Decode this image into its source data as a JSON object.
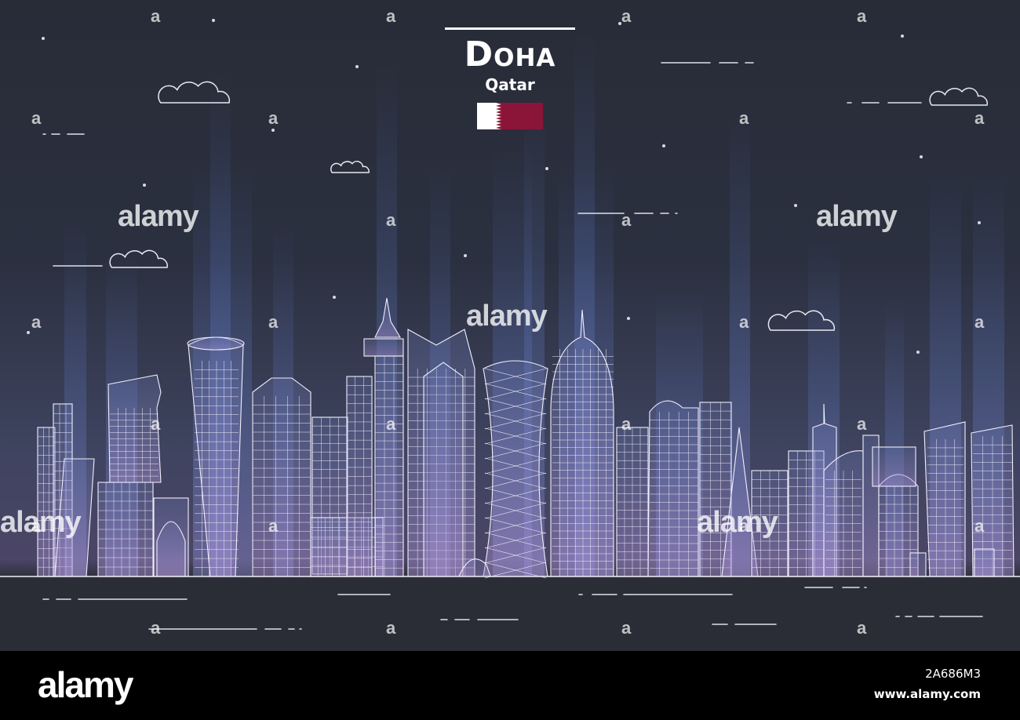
{
  "header": {
    "city": "Doha",
    "country": "Qatar"
  },
  "flag": {
    "icon": "qatar-flag-icon",
    "white": "#ffffff",
    "maroon": "#8a1538"
  },
  "watermark": {
    "text": "alamy",
    "letter": "a"
  },
  "footer": {
    "logo": "alamy",
    "image_id": "2A686M3",
    "url": "www.alamy.com"
  },
  "palette": {
    "sky_top": "#282c37",
    "sky_glow": "#4b4566",
    "line": "#f2eefc",
    "beam": "#5a75c8"
  }
}
